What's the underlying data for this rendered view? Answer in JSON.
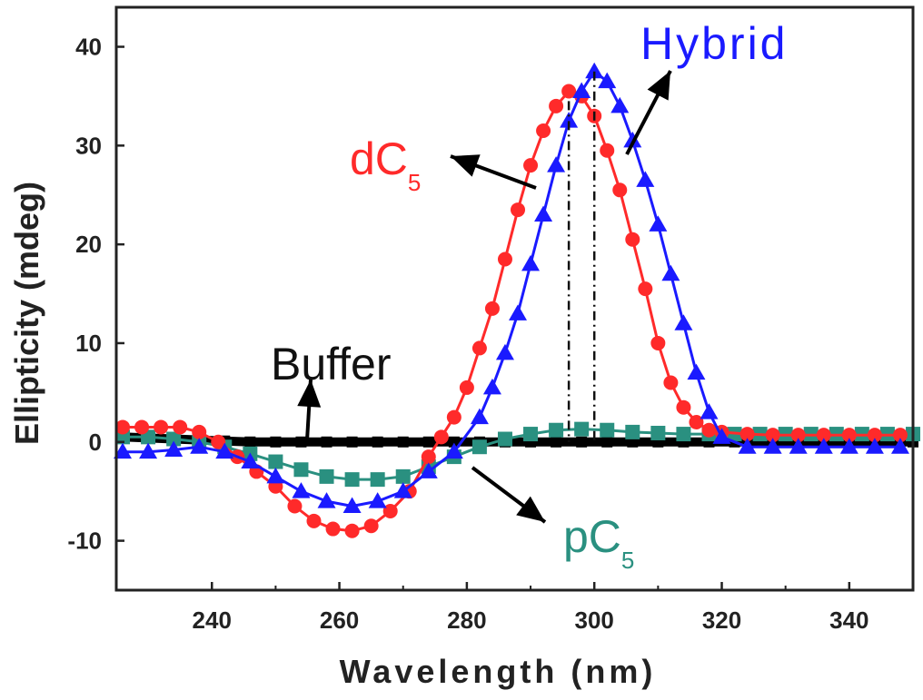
{
  "chart_data": {
    "type": "line",
    "xlabel": "Wavelength (nm)",
    "ylabel": "Ellipticity (mdeg)",
    "xlim": [
      225,
      350
    ],
    "ylim": [
      -15,
      44
    ],
    "xticks": [
      240,
      260,
      280,
      300,
      320,
      340
    ],
    "yticks": [
      -10,
      0,
      10,
      20,
      30,
      40
    ],
    "grid": false,
    "legend": "none",
    "series": [
      {
        "name": "Buffer",
        "color": "#000000",
        "marker": "square",
        "x": [
          226,
          230,
          234,
          238,
          242,
          246,
          250,
          254,
          258,
          262,
          266,
          270,
          274,
          278,
          282,
          286,
          290,
          294,
          298,
          302,
          306,
          310,
          314,
          318,
          322,
          326,
          330,
          334,
          338,
          342,
          346,
          350
        ],
        "y": [
          0.5,
          0.4,
          0.3,
          0.2,
          0.1,
          0.0,
          0.0,
          0.0,
          0.0,
          0.0,
          0.0,
          0.0,
          0.0,
          0.0,
          0.0,
          0.0,
          0.0,
          0.0,
          0.0,
          0.0,
          0.0,
          0.0,
          0.0,
          0.0,
          0.0,
          0.0,
          0.0,
          0.0,
          0.0,
          0.0,
          0.0,
          0.0
        ]
      },
      {
        "name": "dC5",
        "color": "#ff2a2a",
        "marker": "circle",
        "x": [
          226,
          229,
          232,
          235,
          238,
          241,
          244,
          247,
          250,
          253,
          256,
          259,
          262,
          265,
          268,
          271,
          274,
          276,
          278,
          280,
          282,
          284,
          286,
          288,
          290,
          292,
          294,
          296,
          298,
          300,
          302,
          304,
          306,
          308,
          310,
          312,
          314,
          316,
          318,
          320,
          324,
          328,
          332,
          336,
          340,
          344,
          348
        ],
        "y": [
          1.5,
          1.5,
          1.5,
          1.5,
          1.0,
          0.0,
          -1.5,
          -3.0,
          -4.5,
          -6.5,
          -8.0,
          -8.8,
          -9.0,
          -8.5,
          -7.0,
          -5.0,
          -1.5,
          0.5,
          2.5,
          5.5,
          9.5,
          13.5,
          18.5,
          23.5,
          28.0,
          31.5,
          34.0,
          35.5,
          35.0,
          33.0,
          29.5,
          25.5,
          20.5,
          15.5,
          10.0,
          6.0,
          3.5,
          2.0,
          1.2,
          1.0,
          0.8,
          0.7,
          0.7,
          0.7,
          0.7,
          0.7,
          0.7
        ]
      },
      {
        "name": "Hybrid",
        "color": "#1a1aff",
        "marker": "triangle",
        "x": [
          226,
          230,
          234,
          238,
          242,
          246,
          250,
          254,
          258,
          262,
          266,
          270,
          274,
          278,
          282,
          284,
          286,
          288,
          290,
          292,
          294,
          296,
          298,
          300,
          302,
          304,
          306,
          308,
          310,
          312,
          314,
          316,
          318,
          320,
          324,
          328,
          332,
          336,
          340,
          344,
          348
        ],
        "y": [
          -1.0,
          -1.0,
          -0.8,
          -0.5,
          -1.0,
          -2.0,
          -3.5,
          -5.0,
          -6.0,
          -6.5,
          -6.0,
          -5.0,
          -3.0,
          -1.0,
          2.5,
          5.5,
          9.0,
          13.0,
          18.0,
          23.0,
          28.0,
          32.5,
          35.5,
          37.5,
          36.5,
          34.0,
          30.5,
          26.5,
          22.0,
          17.0,
          12.0,
          7.0,
          3.0,
          0.5,
          -0.5,
          -0.5,
          -0.5,
          -0.5,
          -0.5,
          -0.5,
          -0.5
        ]
      },
      {
        "name": "pC5",
        "color": "#2a9080",
        "marker": "square",
        "x": [
          226,
          230,
          234,
          238,
          242,
          246,
          250,
          254,
          258,
          262,
          266,
          270,
          274,
          278,
          282,
          286,
          290,
          294,
          298,
          302,
          306,
          310,
          314,
          318,
          322,
          326,
          330,
          334,
          338,
          342,
          346,
          350
        ],
        "y": [
          0.5,
          0.5,
          0.3,
          0.0,
          -0.5,
          -1.2,
          -2.0,
          -2.8,
          -3.5,
          -3.8,
          -3.8,
          -3.5,
          -2.5,
          -1.5,
          -0.5,
          0.3,
          0.8,
          1.2,
          1.3,
          1.2,
          1.0,
          0.9,
          0.8,
          0.8,
          0.8,
          0.8,
          0.8,
          0.8,
          0.8,
          0.8,
          0.8,
          0.8
        ]
      }
    ],
    "annotations": [
      {
        "main": "Buffer",
        "sub": ""
      },
      {
        "main": "dC",
        "sub": "5"
      },
      {
        "main": "Hybrid",
        "sub": ""
      },
      {
        "main": "pC",
        "sub": "5"
      }
    ]
  }
}
